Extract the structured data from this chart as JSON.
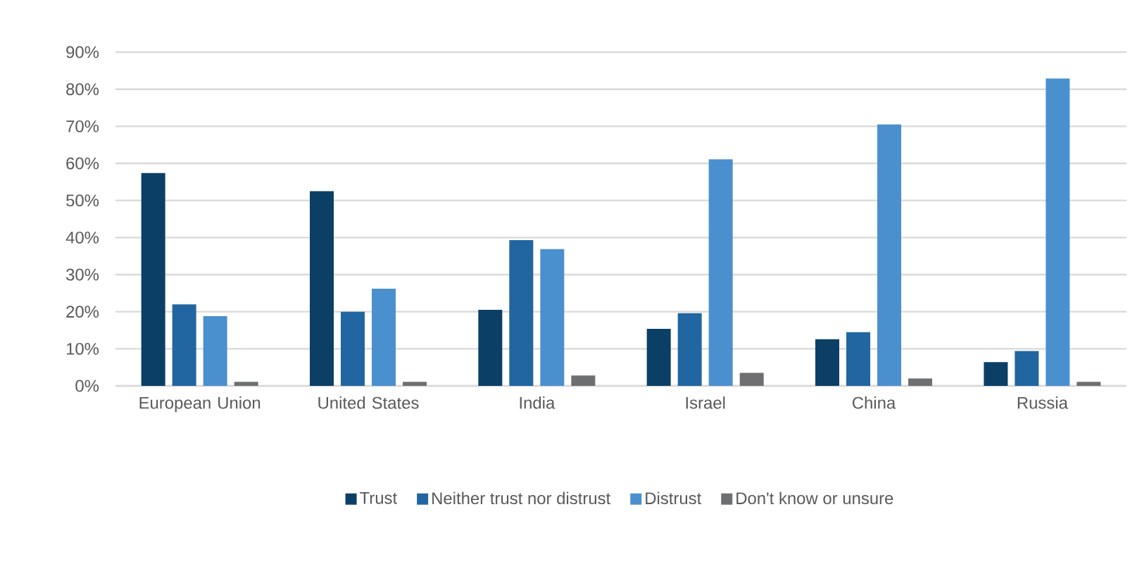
{
  "chart_data": {
    "type": "bar",
    "categories": [
      "European Union",
      "United States",
      "India",
      "Israel",
      "China",
      "Russia"
    ],
    "series": [
      {
        "name": "Trust",
        "color": "#0b3f66",
        "values": [
          57.4,
          52.5,
          20.5,
          15.4,
          12.6,
          6.4
        ]
      },
      {
        "name": "Neither trust nor distrust",
        "color": "#2166a0",
        "values": [
          22.0,
          20.0,
          39.3,
          19.6,
          14.5,
          9.4
        ]
      },
      {
        "name": "Distrust",
        "color": "#4a90cf",
        "values": [
          18.8,
          26.2,
          36.9,
          61.1,
          70.5,
          82.9
        ]
      },
      {
        "name": "Don't know or unsure",
        "color": "#6d6f71",
        "values": [
          1.1,
          1.1,
          2.8,
          3.5,
          2.0,
          1.1
        ]
      }
    ],
    "ylim": [
      0,
      90
    ],
    "yticks": [
      {
        "value": 0,
        "label": "0%"
      },
      {
        "value": 10,
        "label": "10%"
      },
      {
        "value": 20,
        "label": "20%"
      },
      {
        "value": 30,
        "label": "30%"
      },
      {
        "value": 40,
        "label": "40%"
      },
      {
        "value": 50,
        "label": "50%"
      },
      {
        "value": 60,
        "label": "60%"
      },
      {
        "value": 70,
        "label": "70%"
      },
      {
        "value": 80,
        "label": "80%"
      },
      {
        "value": 90,
        "label": "90%"
      }
    ],
    "grid": "y",
    "legend": "bottom"
  }
}
